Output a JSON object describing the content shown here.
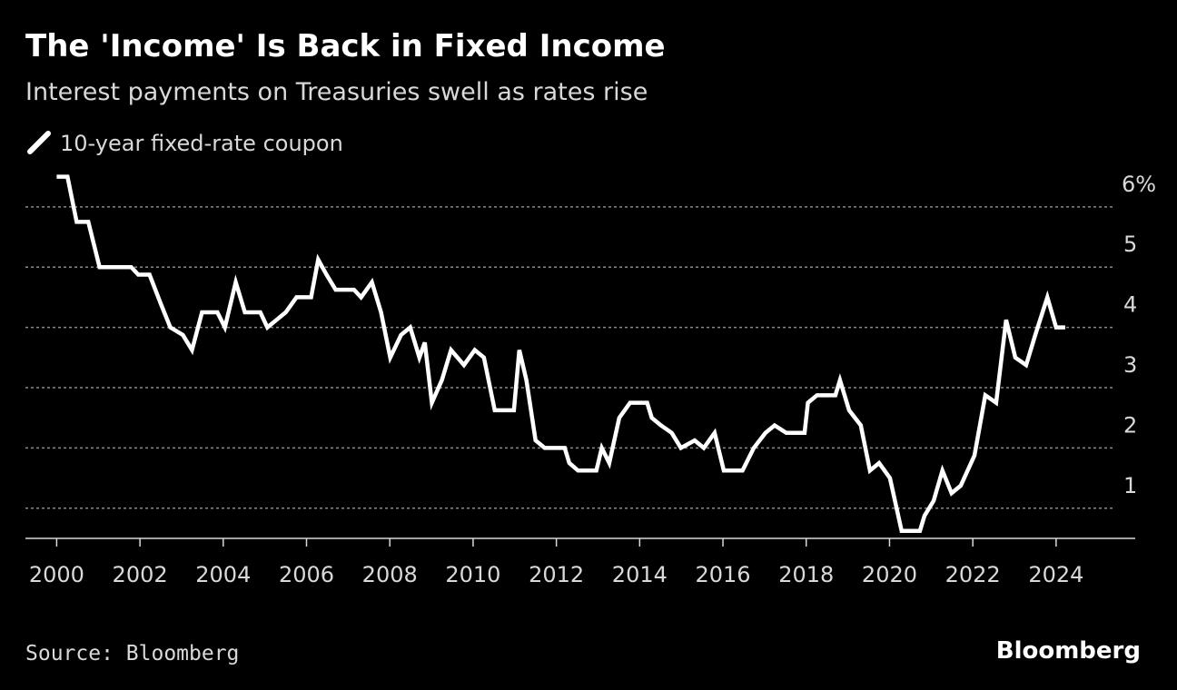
{
  "chart_data": {
    "type": "line",
    "title": "The 'Income' Is Back in Fixed Income",
    "subtitle": "Interest payments on Treasuries swell as rates rise",
    "source": "Source: Bloomberg",
    "logo": "Bloomberg",
    "xlim": [
      1999.25,
      2025.9
    ],
    "xticks": [
      2000,
      2002,
      2004,
      2006,
      2008,
      2010,
      2012,
      2014,
      2016,
      2018,
      2020,
      2022,
      2024
    ],
    "ylim": [
      0.5,
      6.6
    ],
    "yticks": [
      1,
      2,
      3,
      4,
      5,
      {
        "value": 6,
        "label": "6%"
      }
    ],
    "grid": true,
    "series": [
      {
        "name": "10-year fixed-rate coupon",
        "color": "#ffffff",
        "x": [
          2000.0,
          2000.26,
          2000.48,
          2000.76,
          2001.03,
          2001.79,
          2001.96,
          2002.23,
          2002.51,
          2002.73,
          2003.03,
          2003.25,
          2003.49,
          2003.86,
          2004.04,
          2004.3,
          2004.52,
          2004.89,
          2005.06,
          2005.28,
          2005.5,
          2005.76,
          2006.11,
          2006.28,
          2006.48,
          2006.7,
          2007.14,
          2007.31,
          2007.57,
          2007.79,
          2008.01,
          2008.27,
          2008.49,
          2008.71,
          2008.84,
          2009.01,
          2009.25,
          2009.47,
          2009.78,
          2010.04,
          2010.26,
          2010.52,
          2010.98,
          2011.11,
          2011.28,
          2011.5,
          2011.72,
          2012.2,
          2012.31,
          2012.52,
          2012.96,
          2013.09,
          2013.27,
          2013.51,
          2013.77,
          2014.18,
          2014.29,
          2014.51,
          2014.77,
          2014.99,
          2015.32,
          2015.54,
          2015.8,
          2016.02,
          2016.47,
          2016.74,
          2017.02,
          2017.24,
          2017.52,
          2017.96,
          2018.04,
          2018.26,
          2018.7,
          2018.81,
          2019.03,
          2019.31,
          2019.53,
          2019.75,
          2020.01,
          2020.29,
          2020.73,
          2020.84,
          2021.06,
          2021.27,
          2021.49,
          2021.71,
          2022.04,
          2022.3,
          2022.56,
          2022.8,
          2023.02,
          2023.28,
          2023.5,
          2023.79,
          2024.0,
          2024.22
        ],
        "values": [
          6.5,
          6.5,
          5.75,
          5.75,
          5.0,
          5.0,
          4.875,
          4.875,
          4.375,
          4.0,
          3.875,
          3.625,
          4.25,
          4.25,
          4.0,
          4.75,
          4.25,
          4.25,
          4.0,
          4.125,
          4.25,
          4.5,
          4.5,
          5.125,
          4.875,
          4.625,
          4.625,
          4.5,
          4.75,
          4.25,
          3.5,
          3.875,
          4.0,
          3.5,
          3.75,
          2.75,
          3.125,
          3.625,
          3.375,
          3.625,
          3.5,
          2.625,
          2.625,
          3.625,
          3.125,
          2.125,
          2.0,
          2.0,
          1.75,
          1.625,
          1.625,
          2.0,
          1.75,
          2.5,
          2.75,
          2.75,
          2.5,
          2.375,
          2.25,
          2.0,
          2.125,
          2.0,
          2.25,
          1.625,
          1.625,
          2.0,
          2.25,
          2.375,
          2.25,
          2.25,
          2.75,
          2.875,
          2.875,
          3.125,
          2.625,
          2.375,
          1.625,
          1.75,
          1.5,
          0.625,
          0.625,
          0.875,
          1.125,
          1.625,
          1.25,
          1.375,
          1.875,
          2.875,
          2.75,
          4.125,
          3.5,
          3.375,
          3.875,
          4.5,
          4.0,
          4.0
        ]
      }
    ]
  }
}
